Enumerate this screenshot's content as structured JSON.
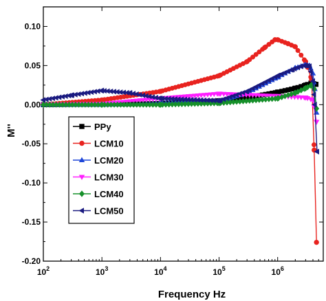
{
  "chart_data": {
    "type": "line",
    "xlabel": "Frequency Hz",
    "ylabel": "M''",
    "x_scale": "log",
    "xlim": [
      100,
      6000000
    ],
    "ylim": [
      -0.2,
      0.125
    ],
    "x_ticks": [
      {
        "value": 100,
        "base": "10",
        "exp": "2"
      },
      {
        "value": 1000,
        "base": "10",
        "exp": "3"
      },
      {
        "value": 10000,
        "base": "10",
        "exp": "4"
      },
      {
        "value": 100000,
        "base": "10",
        "exp": "5"
      },
      {
        "value": 1000000,
        "base": "10",
        "exp": "6"
      }
    ],
    "y_ticks": [
      {
        "value": 0.1,
        "label": "0.10"
      },
      {
        "value": 0.05,
        "label": "0.05"
      },
      {
        "value": 0.0,
        "label": "0.00"
      },
      {
        "value": -0.05,
        "label": "-0.05"
      },
      {
        "value": -0.1,
        "label": "-0.10"
      },
      {
        "value": -0.15,
        "label": "-0.15"
      },
      {
        "value": -0.2,
        "label": "-0.20"
      }
    ],
    "grid": false,
    "legend_position": "center-left",
    "series": [
      {
        "name": "PPy",
        "color": "#000000",
        "marker": "square",
        "x": [
          100,
          1000,
          10000,
          100000,
          300000,
          1000000,
          2000000,
          3000000,
          3800000,
          4500000
        ],
        "y": [
          0.0,
          0.0005,
          0.0015,
          0.005,
          0.009,
          0.016,
          0.021,
          0.025,
          0.028,
          0.026
        ]
      },
      {
        "name": "LCM10",
        "color": "#e8231f",
        "marker": "circle",
        "x": [
          100,
          1000,
          10000,
          100000,
          300000,
          600000,
          900000,
          1000000,
          1500000,
          2000000,
          3000000,
          3800000,
          4200000,
          4600000
        ],
        "y": [
          0.0,
          0.006,
          0.017,
          0.037,
          0.055,
          0.073,
          0.083,
          0.083,
          0.078,
          0.074,
          0.055,
          0.032,
          -0.058,
          -0.176
        ]
      },
      {
        "name": "LCM20",
        "color": "#1e46d8",
        "marker": "triangle-up",
        "x": [
          100,
          1000,
          10000,
          100000,
          300000,
          1000000,
          2000000,
          3000000,
          3500000,
          4000000,
          4300000,
          4600000
        ],
        "y": [
          0.0,
          0.0,
          0.002,
          0.004,
          0.015,
          0.035,
          0.047,
          0.051,
          0.05,
          0.04,
          0.02,
          -0.01
        ]
      },
      {
        "name": "LCM30",
        "color": "#ff1eff",
        "marker": "triangle-down",
        "x": [
          100,
          1000,
          10000,
          100000,
          1000000,
          3000000,
          4000000,
          4600000
        ],
        "y": [
          0.0,
          0.001,
          0.008,
          0.014,
          0.011,
          0.009,
          0.006,
          -0.022
        ]
      },
      {
        "name": "LCM40",
        "color": "#16902a",
        "marker": "diamond",
        "x": [
          100,
          1000,
          10000,
          100000,
          1000000,
          2000000,
          3000000,
          3800000,
          4200000,
          4600000
        ],
        "y": [
          0.0,
          0.0,
          0.0,
          0.002,
          0.008,
          0.015,
          0.021,
          0.025,
          0.02,
          -0.005
        ]
      },
      {
        "name": "LCM50",
        "color": "#1a1a80",
        "marker": "triangle-left",
        "x": [
          100,
          300,
          1000,
          3000,
          10000,
          100000,
          300000,
          1000000,
          1800000,
          2500000,
          3000000,
          3500000,
          4000000,
          4300000,
          4700000
        ],
        "y": [
          0.006,
          0.012,
          0.018,
          0.015,
          0.008,
          0.005,
          0.017,
          0.037,
          0.045,
          0.049,
          0.05,
          0.049,
          0.03,
          0.0,
          -0.06
        ]
      }
    ]
  }
}
